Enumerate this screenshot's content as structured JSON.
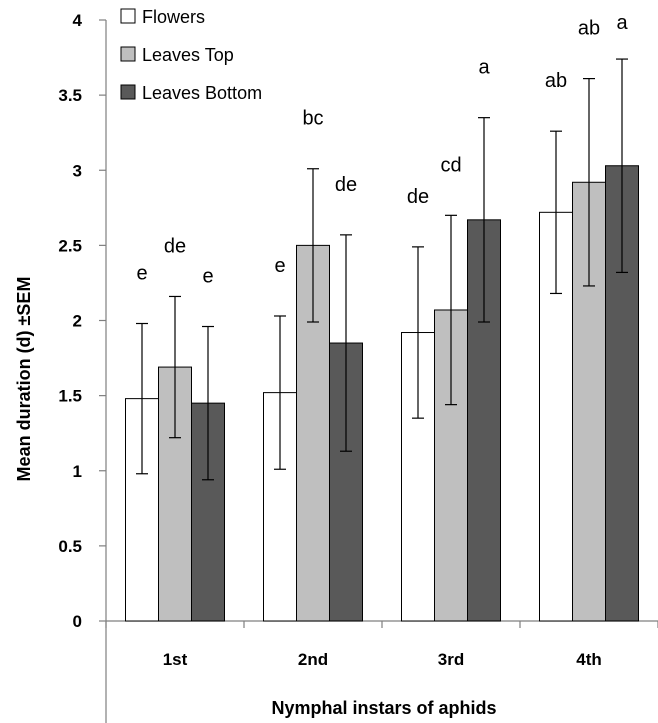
{
  "chart_data": {
    "type": "bar",
    "title": "",
    "xlabel": "Nymphal instars of aphids",
    "ylabel": "Mean duration (d) ±SEM",
    "ylim": [
      0,
      4
    ],
    "yticks": [
      "0",
      "0.5",
      "1",
      "1.5",
      "2",
      "2.5",
      "3",
      "3.5",
      "4"
    ],
    "categories": [
      "1st",
      "2nd",
      "3rd",
      "4th"
    ],
    "legend_position": "top-left",
    "grid": false,
    "series": [
      {
        "name": "Flowers",
        "color": "#ffffff",
        "values": [
          1.48,
          1.52,
          1.92,
          2.72
        ],
        "errors": [
          0.5,
          0.51,
          0.57,
          0.54
        ],
        "significance": [
          "e",
          "e",
          "de",
          "ab"
        ]
      },
      {
        "name": "Leaves Top",
        "color": "#bfbfbf",
        "values": [
          1.69,
          2.5,
          2.07,
          2.92
        ],
        "errors": [
          0.47,
          0.51,
          0.63,
          0.69
        ],
        "significance": [
          "de",
          "bc",
          "cd",
          "ab"
        ]
      },
      {
        "name": "Leaves Bottom",
        "color": "#595959",
        "values": [
          1.45,
          1.85,
          2.67,
          3.03
        ],
        "errors": [
          0.51,
          0.72,
          0.68,
          0.71
        ],
        "significance": [
          "e",
          "de",
          "a",
          "a"
        ]
      }
    ]
  }
}
